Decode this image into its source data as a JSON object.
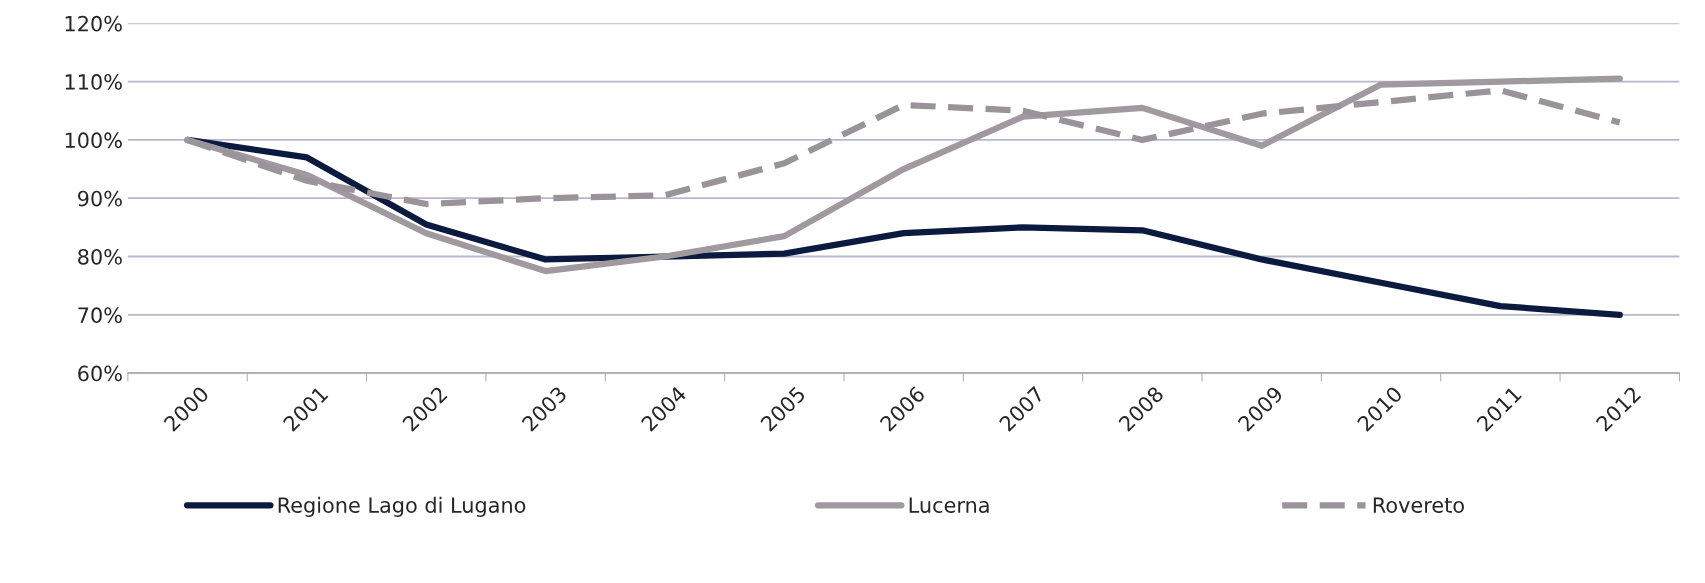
{
  "chart_data": {
    "type": "line",
    "categories": [
      "2000",
      "2001",
      "2002",
      "2003",
      "2004",
      "2005",
      "2006",
      "2007",
      "2008",
      "2009",
      "2010",
      "2011",
      "2012"
    ],
    "series": [
      {
        "name": "Regione Lago di Lugano",
        "color": "#0d1a40",
        "line_style": "solid",
        "values": [
          100,
          97,
          85.5,
          79.5,
          80,
          80.5,
          84,
          85,
          84.5,
          79.5,
          75.5,
          71.5,
          70
        ]
      },
      {
        "name": "Lucerna",
        "color": "#a09aa0",
        "line_style": "solid",
        "values": [
          100,
          94,
          84,
          77.5,
          80,
          83.5,
          95,
          104,
          105.5,
          99,
          109.5,
          110,
          110.5
        ]
      },
      {
        "name": "Rovereto",
        "color": "#9a949a",
        "line_style": "dashed",
        "values": [
          100,
          93,
          89,
          90,
          90.5,
          96,
          106,
          105,
          100,
          104.5,
          106.5,
          108.5,
          103
        ]
      }
    ],
    "ylim": [
      60,
      120
    ],
    "yticks": [
      {
        "value": 60,
        "label": "60%"
      },
      {
        "value": 70,
        "label": "70%"
      },
      {
        "value": 80,
        "label": "80%"
      },
      {
        "value": 90,
        "label": "90%"
      },
      {
        "value": 100,
        "label": "100%"
      },
      {
        "value": 110,
        "label": "110%"
      },
      {
        "value": 120,
        "label": "120%"
      }
    ],
    "grid": "y",
    "legend": "bottom",
    "marker": "none"
  }
}
